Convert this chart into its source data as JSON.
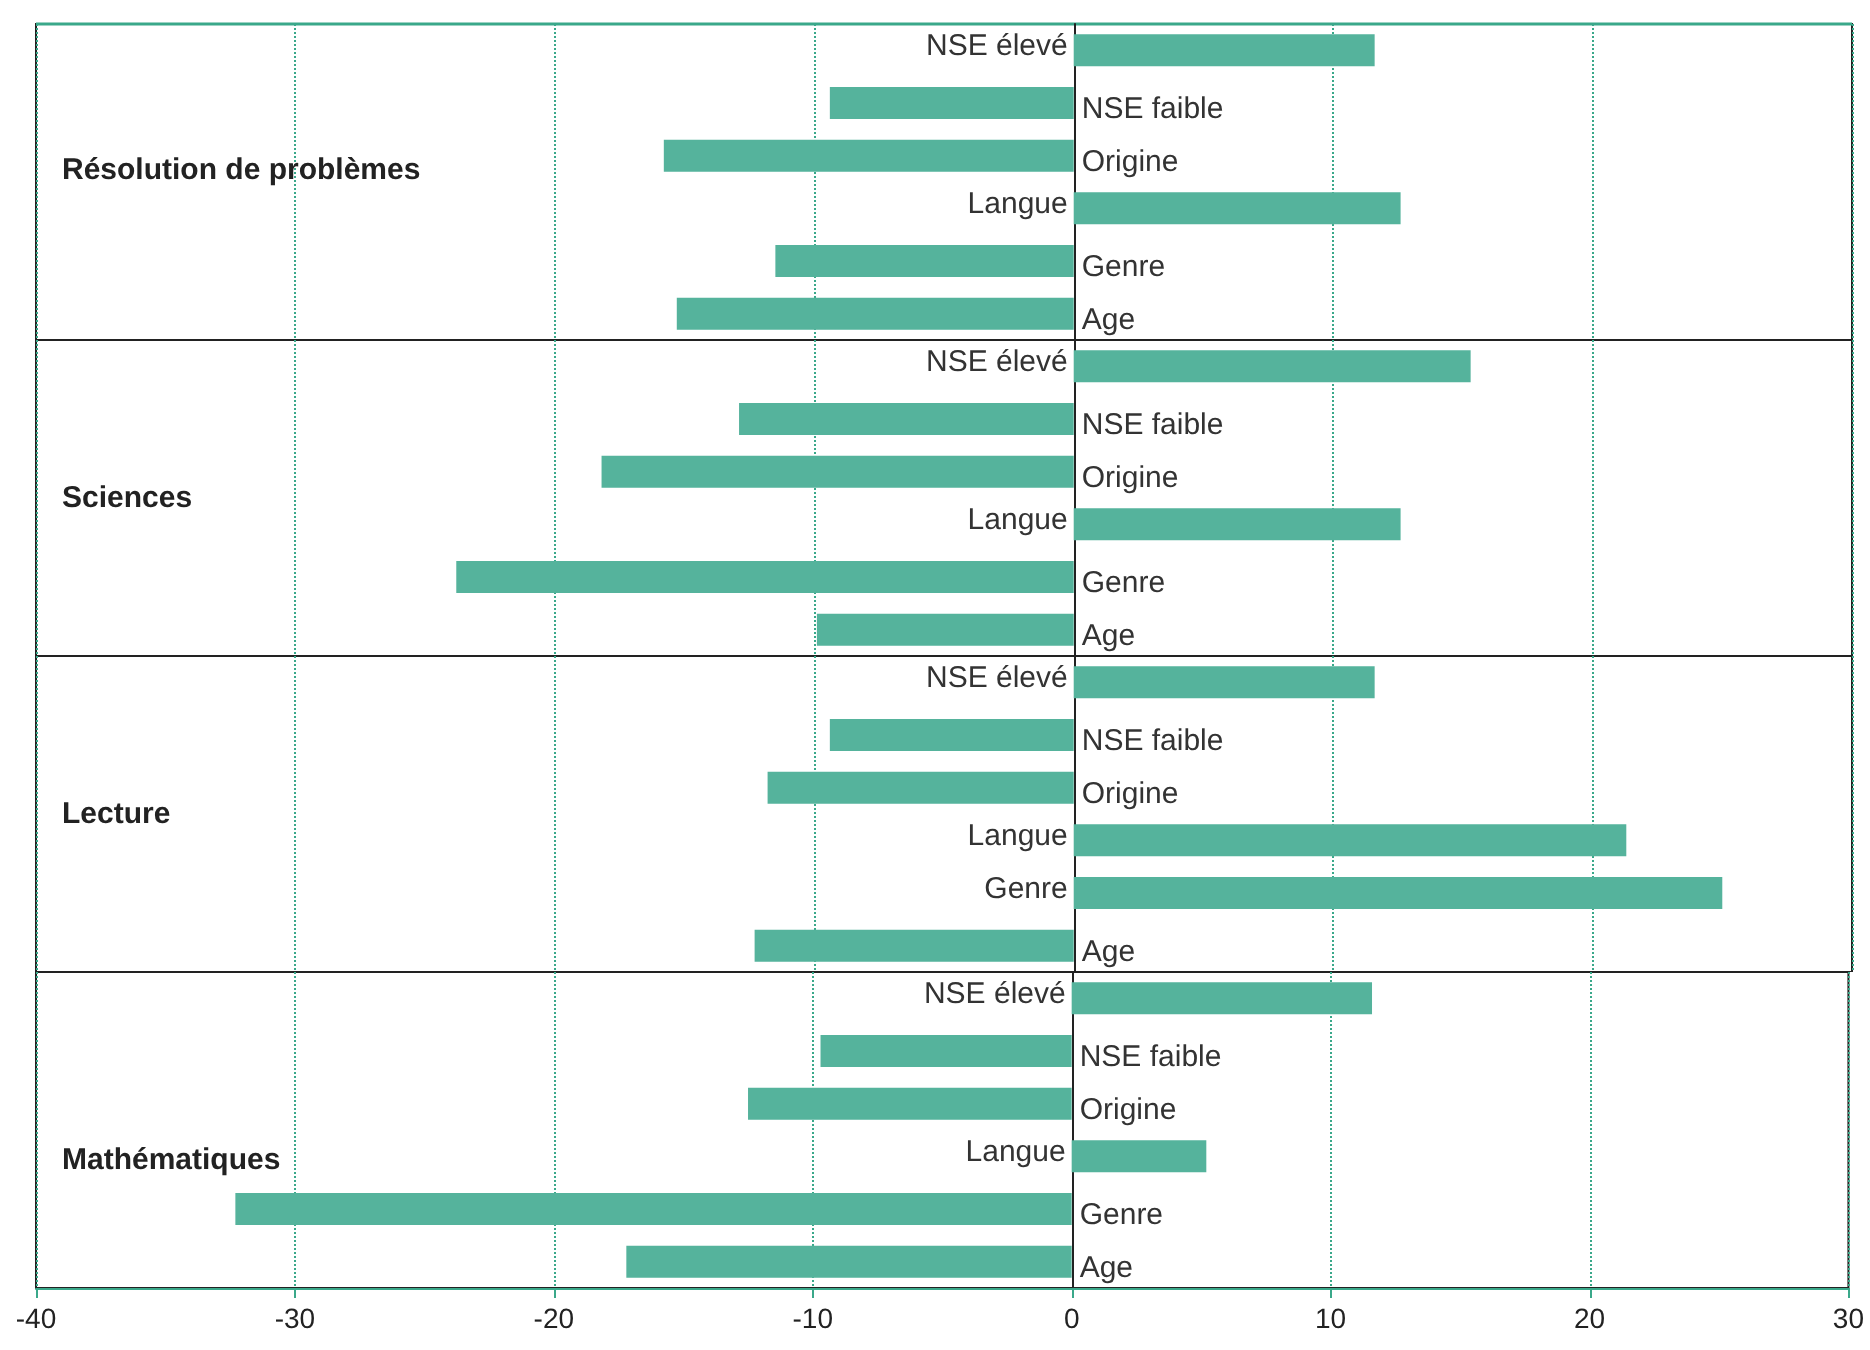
{
  "chart_data": [
    {
      "type": "bar",
      "orientation": "horizontal",
      "title": "Résolution de problèmes",
      "categories": [
        "NSE élevé",
        "NSE faible",
        "Origine",
        "Langue",
        "Genre",
        "Age"
      ],
      "values": [
        11.6,
        -9.4,
        -15.8,
        12.6,
        -11.5,
        -15.3
      ],
      "color": "#55b39c",
      "xlim": [
        -40,
        30
      ],
      "xticks": [
        -40,
        -30,
        -20,
        -10,
        0,
        10,
        20,
        30
      ],
      "grid": "x",
      "tick_labels": "y"
    },
    {
      "type": "bar",
      "orientation": "horizontal",
      "title": "Sciences",
      "categories": [
        "NSE élevé",
        "NSE faible",
        "Origine",
        "Langue",
        "Genre",
        "Age"
      ],
      "values": [
        15.3,
        -12.9,
        -18.2,
        12.6,
        -23.8,
        -9.9
      ],
      "color": "#55b39c",
      "xlim": [
        -40,
        30
      ],
      "xticks": [
        -40,
        -30,
        -20,
        -10,
        0,
        10,
        20,
        30
      ],
      "grid": "x",
      "tick_labels": "y"
    },
    {
      "type": "bar",
      "orientation": "horizontal",
      "title": "Lecture",
      "categories": [
        "NSE élevé",
        "NSE faible",
        "Origine",
        "Langue",
        "Genre",
        "Age"
      ],
      "values": [
        11.6,
        -9.4,
        -11.8,
        21.3,
        25.0,
        -12.3
      ],
      "color": "#55b39c",
      "xlim": [
        -40,
        30
      ],
      "xticks": [
        -40,
        -30,
        -20,
        -10,
        0,
        10,
        20,
        30
      ],
      "grid": "x",
      "tick_labels": "y"
    },
    {
      "type": "bar",
      "orientation": "horizontal",
      "title": "Mathématiques",
      "categories": [
        "NSE élevé",
        "NSE faible",
        "Origine",
        "Langue",
        "Genre",
        "Age"
      ],
      "values": [
        11.6,
        -9.7,
        -12.5,
        5.2,
        -32.3,
        -17.2
      ],
      "color": "#55b39c",
      "xlim": [
        -40,
        30
      ],
      "xticks": [
        -40,
        -30,
        -20,
        -10,
        0,
        10,
        20,
        30
      ],
      "grid": "x"
    }
  ]
}
